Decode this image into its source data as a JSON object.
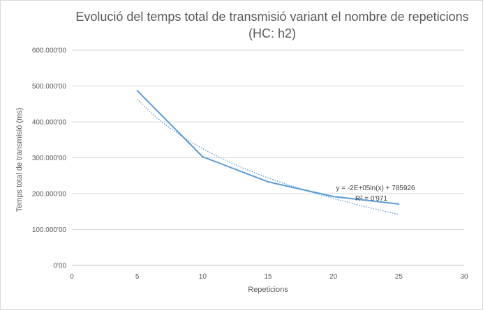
{
  "chart_data": {
    "type": "line",
    "title_line1": "Evolució del temps total de transmisió variant el nombre de repeticions",
    "title_line2": "(HC: h2)",
    "xlabel": "Repeticions",
    "ylabel": "Temps total de transmisió (ms)",
    "xlim": [
      0,
      30
    ],
    "ylim": [
      0,
      600000
    ],
    "x_ticks": [
      "0",
      "5",
      "10",
      "15",
      "20",
      "25",
      "30"
    ],
    "y_ticks": [
      "0'00",
      "100.000'00",
      "200.000'00",
      "300.000'00",
      "400.000'00",
      "500.000'00",
      "600.000'00"
    ],
    "grid": true,
    "series": [
      {
        "color": "#5b9bd5",
        "x": [
          5,
          10,
          15,
          20,
          25
        ],
        "y": [
          487000,
          303000,
          233000,
          192000,
          171000
        ]
      }
    ],
    "trendline": {
      "type": "logarithmic",
      "style": "dotted",
      "color": "#5b9bd5",
      "a": -200000,
      "b": 785926,
      "x_range": [
        5,
        25
      ],
      "equation_label": "y = -2E+05ln(x) + 785926",
      "r2_label": "R² = 0'971"
    }
  }
}
